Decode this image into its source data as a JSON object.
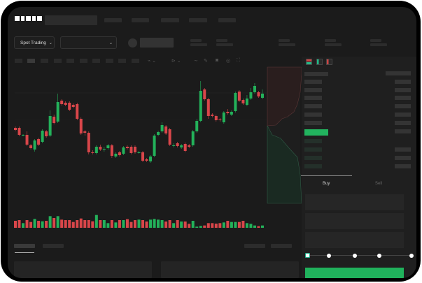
{
  "brand": {
    "logo": "OKX",
    "logo_color": "#ffffff"
  },
  "toolbar": {
    "market_select": "Spot Trading",
    "pair_select": ""
  },
  "order_form": {
    "tabs": [
      "Buy",
      "Sell"
    ],
    "active_tab": "Buy",
    "leverage_slider_position": 0,
    "slider_steps": 5,
    "submit_color": "#20b25c"
  },
  "colors": {
    "up": "#23b15a",
    "down": "#d9464a",
    "background": "#1b1b1b"
  },
  "chart_data": {
    "type": "candlestick",
    "candles": [
      [
        118,
        115,
        120,
        113
      ],
      [
        118,
        108,
        120,
        106
      ],
      [
        107,
        108,
        109,
        106
      ],
      [
        108,
        94,
        113,
        92
      ],
      [
        93,
        89,
        95,
        87
      ],
      [
        87,
        100,
        102,
        84
      ],
      [
        102,
        94,
        104,
        92
      ],
      [
        98,
        114,
        116,
        96
      ],
      [
        113,
        106,
        115,
        104
      ],
      [
        107,
        135,
        143,
        105
      ],
      [
        134,
        125,
        137,
        123
      ],
      [
        127,
        155,
        167,
        125
      ],
      [
        157,
        152,
        159,
        150
      ],
      [
        154,
        151,
        156,
        149
      ],
      [
        154,
        144,
        156,
        142
      ],
      [
        151,
        148,
        153,
        146
      ],
      [
        152,
        131,
        154,
        129
      ],
      [
        131,
        110,
        133,
        108
      ],
      [
        113,
        111,
        115,
        107
      ],
      [
        111,
        83,
        113,
        80
      ],
      [
        83,
        82,
        86,
        80
      ],
      [
        82,
        91,
        93,
        80
      ],
      [
        91,
        87,
        94,
        85
      ],
      [
        87,
        88,
        91,
        84
      ],
      [
        89,
        93,
        95,
        87
      ],
      [
        93,
        78,
        95,
        75
      ],
      [
        77,
        81,
        83,
        75
      ],
      [
        83,
        79,
        85,
        77
      ],
      [
        81,
        90,
        92,
        79
      ],
      [
        91,
        89,
        93,
        87
      ],
      [
        91,
        82,
        93,
        80
      ],
      [
        91,
        83,
        93,
        81
      ],
      [
        83,
        83,
        85,
        81
      ],
      [
        83,
        71,
        85,
        69
      ],
      [
        73,
        71,
        75,
        69
      ],
      [
        70,
        77,
        79,
        68
      ],
      [
        78,
        107,
        109,
        76
      ],
      [
        108,
        112,
        114,
        106
      ],
      [
        113,
        122,
        126,
        111
      ],
      [
        120,
        110,
        122,
        108
      ],
      [
        116,
        94,
        118,
        92
      ],
      [
        92,
        93,
        96,
        90
      ],
      [
        96,
        92,
        98,
        90
      ],
      [
        90,
        93,
        95,
        88
      ],
      [
        95,
        85,
        97,
        83
      ],
      [
        93,
        91,
        95,
        89
      ],
      [
        93,
        113,
        115,
        91
      ],
      [
        113,
        128,
        131,
        111
      ],
      [
        128,
        171,
        185,
        126
      ],
      [
        173,
        159,
        175,
        157
      ],
      [
        159,
        135,
        161,
        131
      ],
      [
        137,
        135,
        139,
        133
      ],
      [
        135,
        129,
        137,
        127
      ],
      [
        130,
        129,
        132,
        127
      ],
      [
        126,
        140,
        142,
        124
      ],
      [
        141,
        139,
        145,
        137
      ],
      [
        137,
        141,
        143,
        135
      ],
      [
        142,
        168,
        170,
        140
      ],
      [
        170,
        157,
        172,
        155
      ],
      [
        158,
        153,
        160,
        151
      ],
      [
        151,
        160,
        165,
        149
      ],
      [
        160,
        169,
        175,
        158
      ],
      [
        169,
        178,
        182,
        167
      ],
      [
        169,
        163,
        171,
        161
      ],
      [
        161,
        167,
        173,
        159
      ]
    ],
    "volume": [
      30,
      33,
      20,
      33,
      25,
      38,
      30,
      28,
      30,
      50,
      42,
      50,
      35,
      33,
      33,
      25,
      33,
      40,
      33,
      33,
      28,
      55,
      33,
      33,
      20,
      33,
      23,
      33,
      33,
      37,
      25,
      33,
      35,
      33,
      27,
      35,
      38,
      35,
      33,
      27,
      33,
      20,
      33,
      27,
      27,
      17,
      30,
      5,
      8,
      10,
      20,
      20,
      18,
      20,
      23,
      30,
      25,
      25,
      25,
      30,
      20,
      17,
      10,
      7,
      10
    ]
  }
}
